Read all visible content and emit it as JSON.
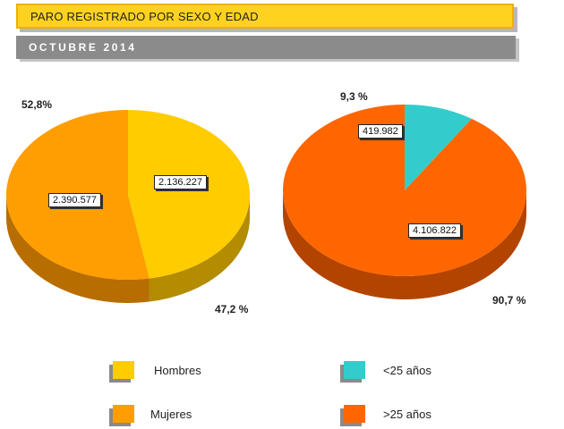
{
  "header": {
    "title": "PARO REGISTRADO POR SEXO Y EDAD",
    "subtitle": "OCTUBRE  2014"
  },
  "chart_data": [
    {
      "type": "pie",
      "title": "",
      "slices": [
        {
          "name": "Hombres",
          "value": 2136227,
          "value_label": "2.136.227",
          "percent_label": "47,2 %",
          "color": "#ffcc00",
          "side": "#b38c00"
        },
        {
          "name": "Mujeres",
          "value": 2390577,
          "value_label": "2.390.577",
          "percent_label": "52,8%",
          "color": "#ff9e00",
          "side": "#b86d00"
        }
      ]
    },
    {
      "type": "pie",
      "title": "",
      "slices": [
        {
          "name": "<25 años",
          "value": 419982,
          "value_label": "419.982",
          "percent_label": "9,3 %",
          "color": "#33cccc",
          "side": "#1f8d8d"
        },
        {
          "name": ">25 años",
          "value": 4106822,
          "value_label": "4.106.822",
          "percent_label": "90,7 %",
          "color": "#ff6600",
          "side": "#b34400"
        }
      ]
    }
  ],
  "legend": [
    {
      "label": "Hombres",
      "color": "#ffcc00"
    },
    {
      "label": "<25 años",
      "color": "#33cccc"
    },
    {
      "label": "Mujeres",
      "color": "#ff9e00"
    },
    {
      "label": ">25 años",
      "color": "#ff6600"
    }
  ]
}
